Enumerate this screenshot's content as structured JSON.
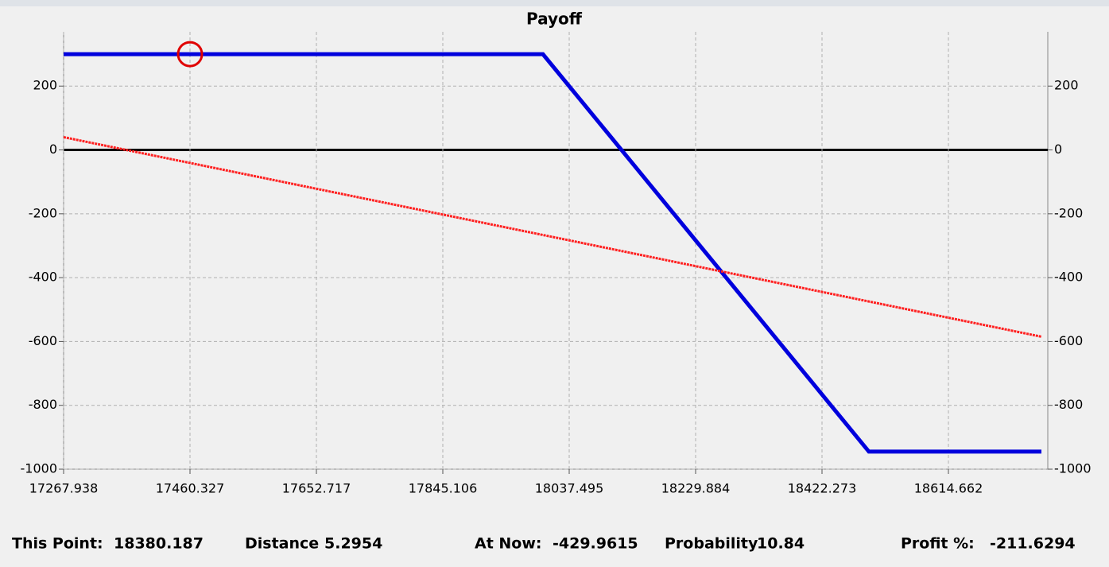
{
  "chart_data": {
    "type": "line",
    "title": "Payoff",
    "xlim": [
      17267.938,
      18765.9
    ],
    "ylim": [
      -1000,
      370
    ],
    "xticks": [
      17267.938,
      17460.327,
      17652.717,
      17845.106,
      18037.495,
      18229.884,
      18422.273,
      18614.662
    ],
    "yticks": [
      200,
      0,
      -200,
      -400,
      -600,
      -800,
      -1000
    ],
    "grid": true,
    "zero_line": true,
    "series": [
      {
        "color": "#0000dd",
        "x": [
          17267.938,
          17997.5,
          18493.6,
          18756.2
        ],
        "values": [
          300,
          300,
          -945,
          -945
        ]
      },
      {
        "color": "#ff2020",
        "x": [
          17267.938,
          18756.2
        ],
        "values": [
          40,
          -585
        ]
      }
    ],
    "marker": {
      "x": 17460.327,
      "y": 300,
      "color": "#e00000"
    },
    "status": [
      {
        "label": "This Point:",
        "value": 18380.187
      },
      {
        "label": "Distance",
        "value": 5.2954
      },
      {
        "label": "At Now:",
        "value": -429.9615
      },
      {
        "label": "Probability",
        "value": 10.84
      },
      {
        "label": "Profit %:",
        "value": -211.6294
      }
    ]
  }
}
